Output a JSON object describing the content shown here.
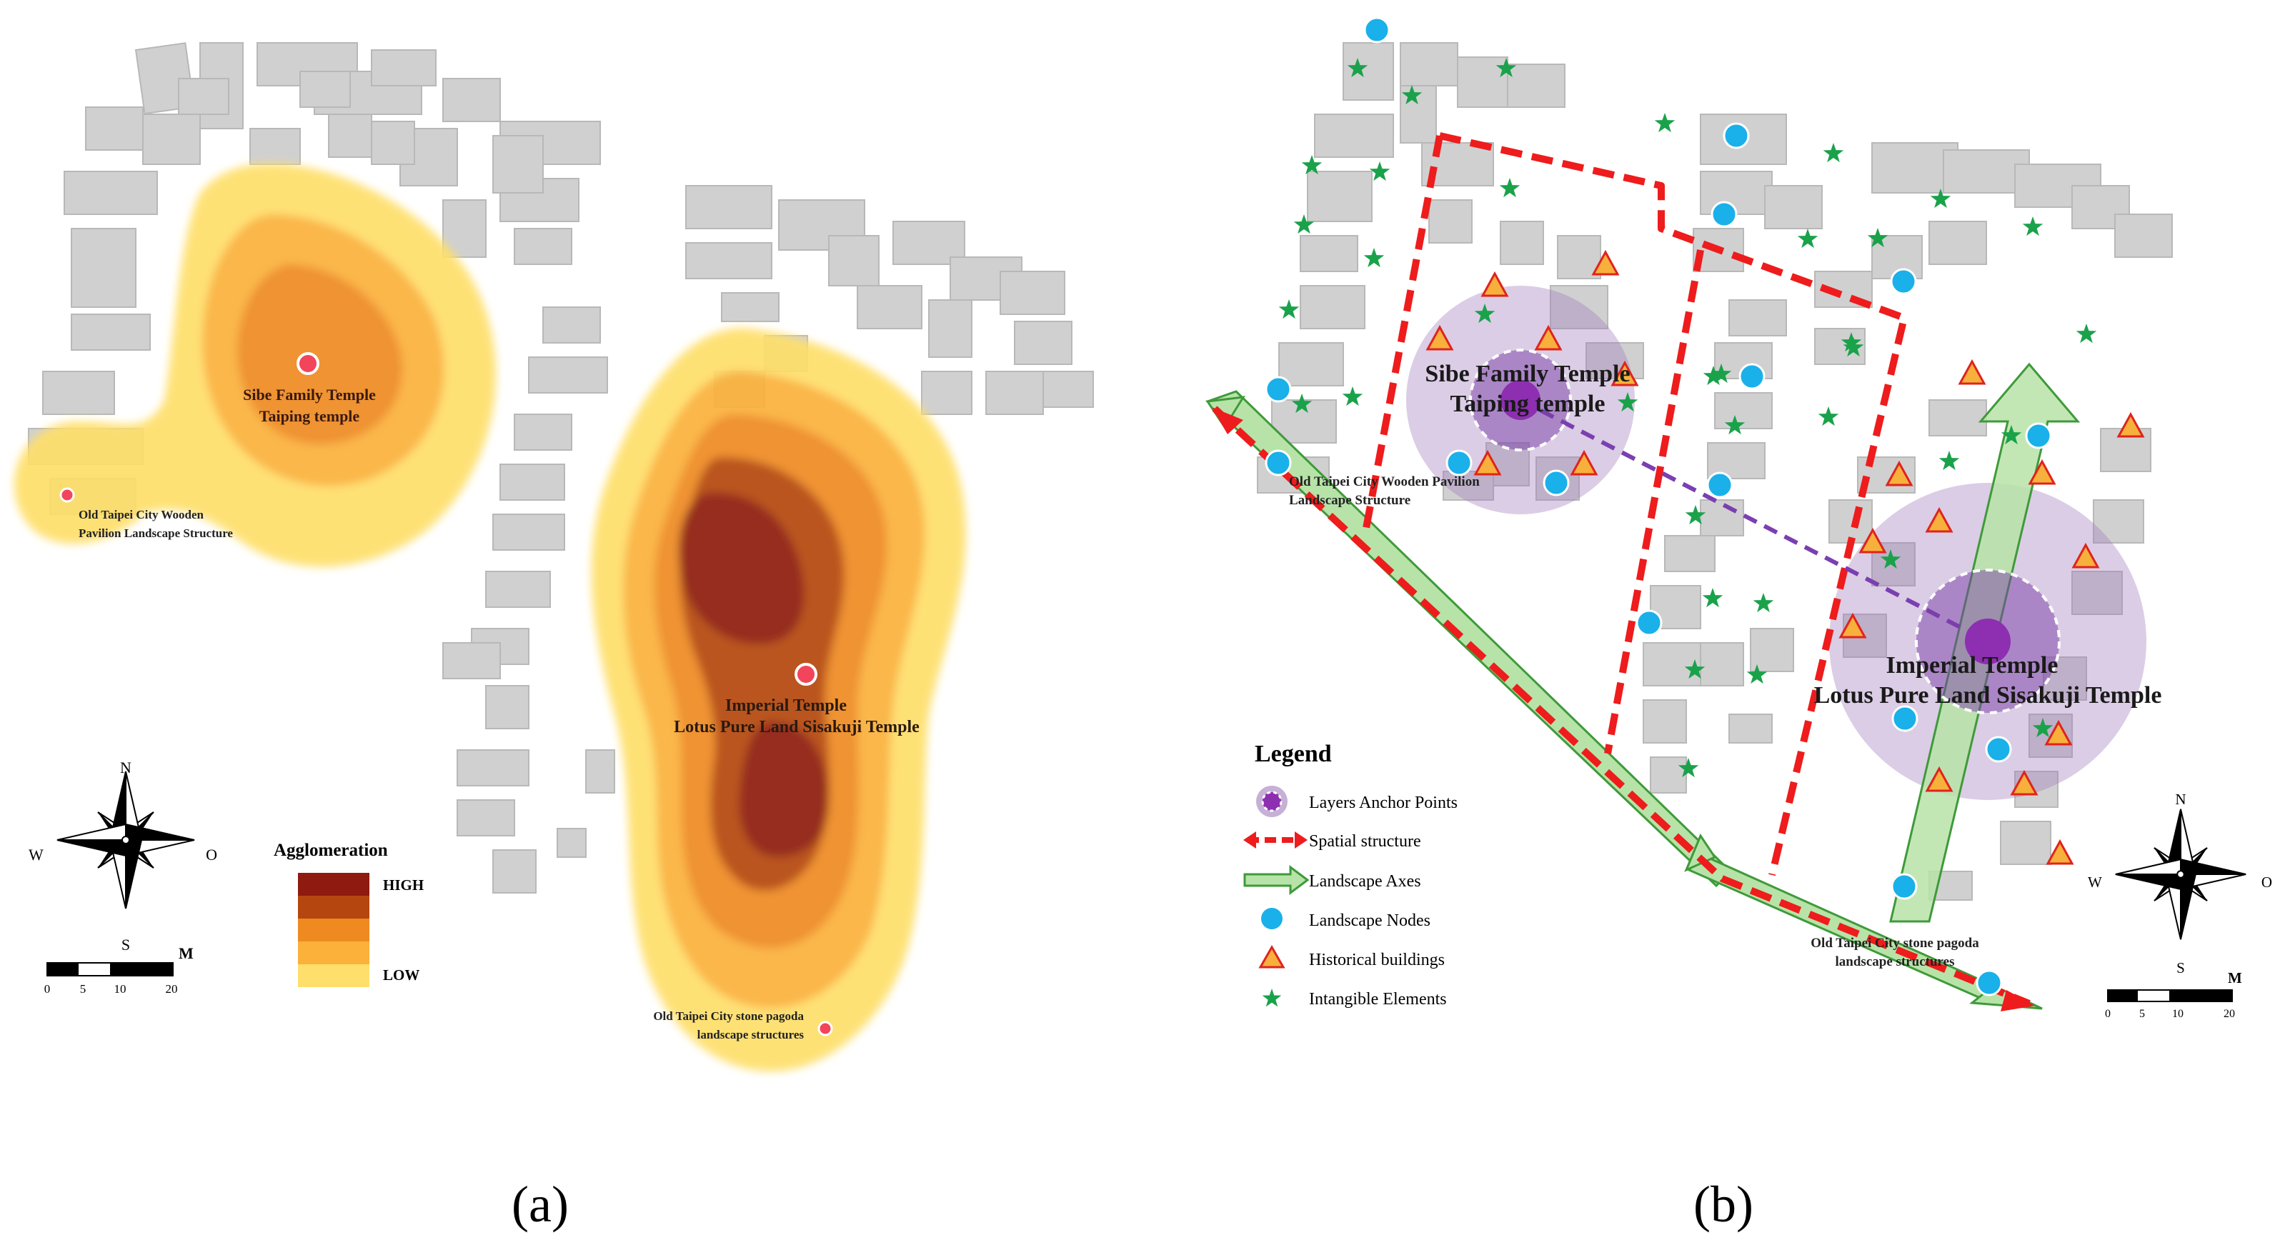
{
  "panel_a": {
    "caption": "(a)",
    "labels": {
      "sibe_line1": "Sibe Family Temple",
      "sibe_line2": "Taiping temple",
      "imperial_line1": "Imperial Temple",
      "imperial_line2": "Lotus Pure Land Sisakuji Temple",
      "pavilion_line1": "Old Taipei City Wooden",
      "pavilion_line2": "Pavilion Landscape Structure",
      "pagoda_line1": "Old Taipei City stone pagoda",
      "pagoda_line2": "landscape structures"
    },
    "legend": {
      "title": "Agglomeration",
      "high": "HIGH",
      "low": "LOW",
      "colors": [
        "#8e1a10",
        "#b5460f",
        "#ee8a20",
        "#fbb13a",
        "#fedf6b"
      ]
    },
    "compass": {
      "n": "N",
      "s": "S",
      "w": "W",
      "e": "O"
    },
    "scale": {
      "unit": "M",
      "ticks": [
        "0",
        "5",
        "10",
        "20"
      ]
    }
  },
  "panel_b": {
    "caption": "(b)",
    "labels": {
      "sibe_line1": "Sibe Family Temple",
      "sibe_line2": "Taiping temple",
      "imperial_line1": "Imperial Temple",
      "imperial_line2": "Lotus Pure Land Sisakuji Temple",
      "pavilion_line1": "Old Taipei City Wooden Pavilion",
      "pavilion_line2": "Landscape Structure",
      "pagoda_line1": "Old Taipei City stone pagoda",
      "pagoda_line2": "landscape structures"
    },
    "legend": {
      "title": "Legend",
      "items": [
        {
          "label": "Layers Anchor Points",
          "icon": "anchor-point-icon"
        },
        {
          "label": "Spatial structure",
          "icon": "dashed-arrow-icon"
        },
        {
          "label": "Landscape Axes",
          "icon": "axis-arrow-icon"
        },
        {
          "label": "Landscape Nodes",
          "icon": "blue-circle-icon"
        },
        {
          "label": "Historical buildings",
          "icon": "triangle-icon"
        },
        {
          "label": "Intangible Elements",
          "icon": "star-icon"
        }
      ]
    },
    "compass": {
      "n": "N",
      "s": "S",
      "w": "W",
      "e": "O"
    },
    "scale": {
      "unit": "M",
      "ticks": [
        "0",
        "5",
        "10",
        "20"
      ]
    },
    "colors": {
      "node": "#1ab0ea",
      "building_fill": "#f7b03c",
      "building_stroke": "#e0231d",
      "star": "#1aa24a",
      "anchor": "#a07cbb",
      "spatial": "#ee1c1c",
      "axis": "#3f9a3a"
    }
  }
}
